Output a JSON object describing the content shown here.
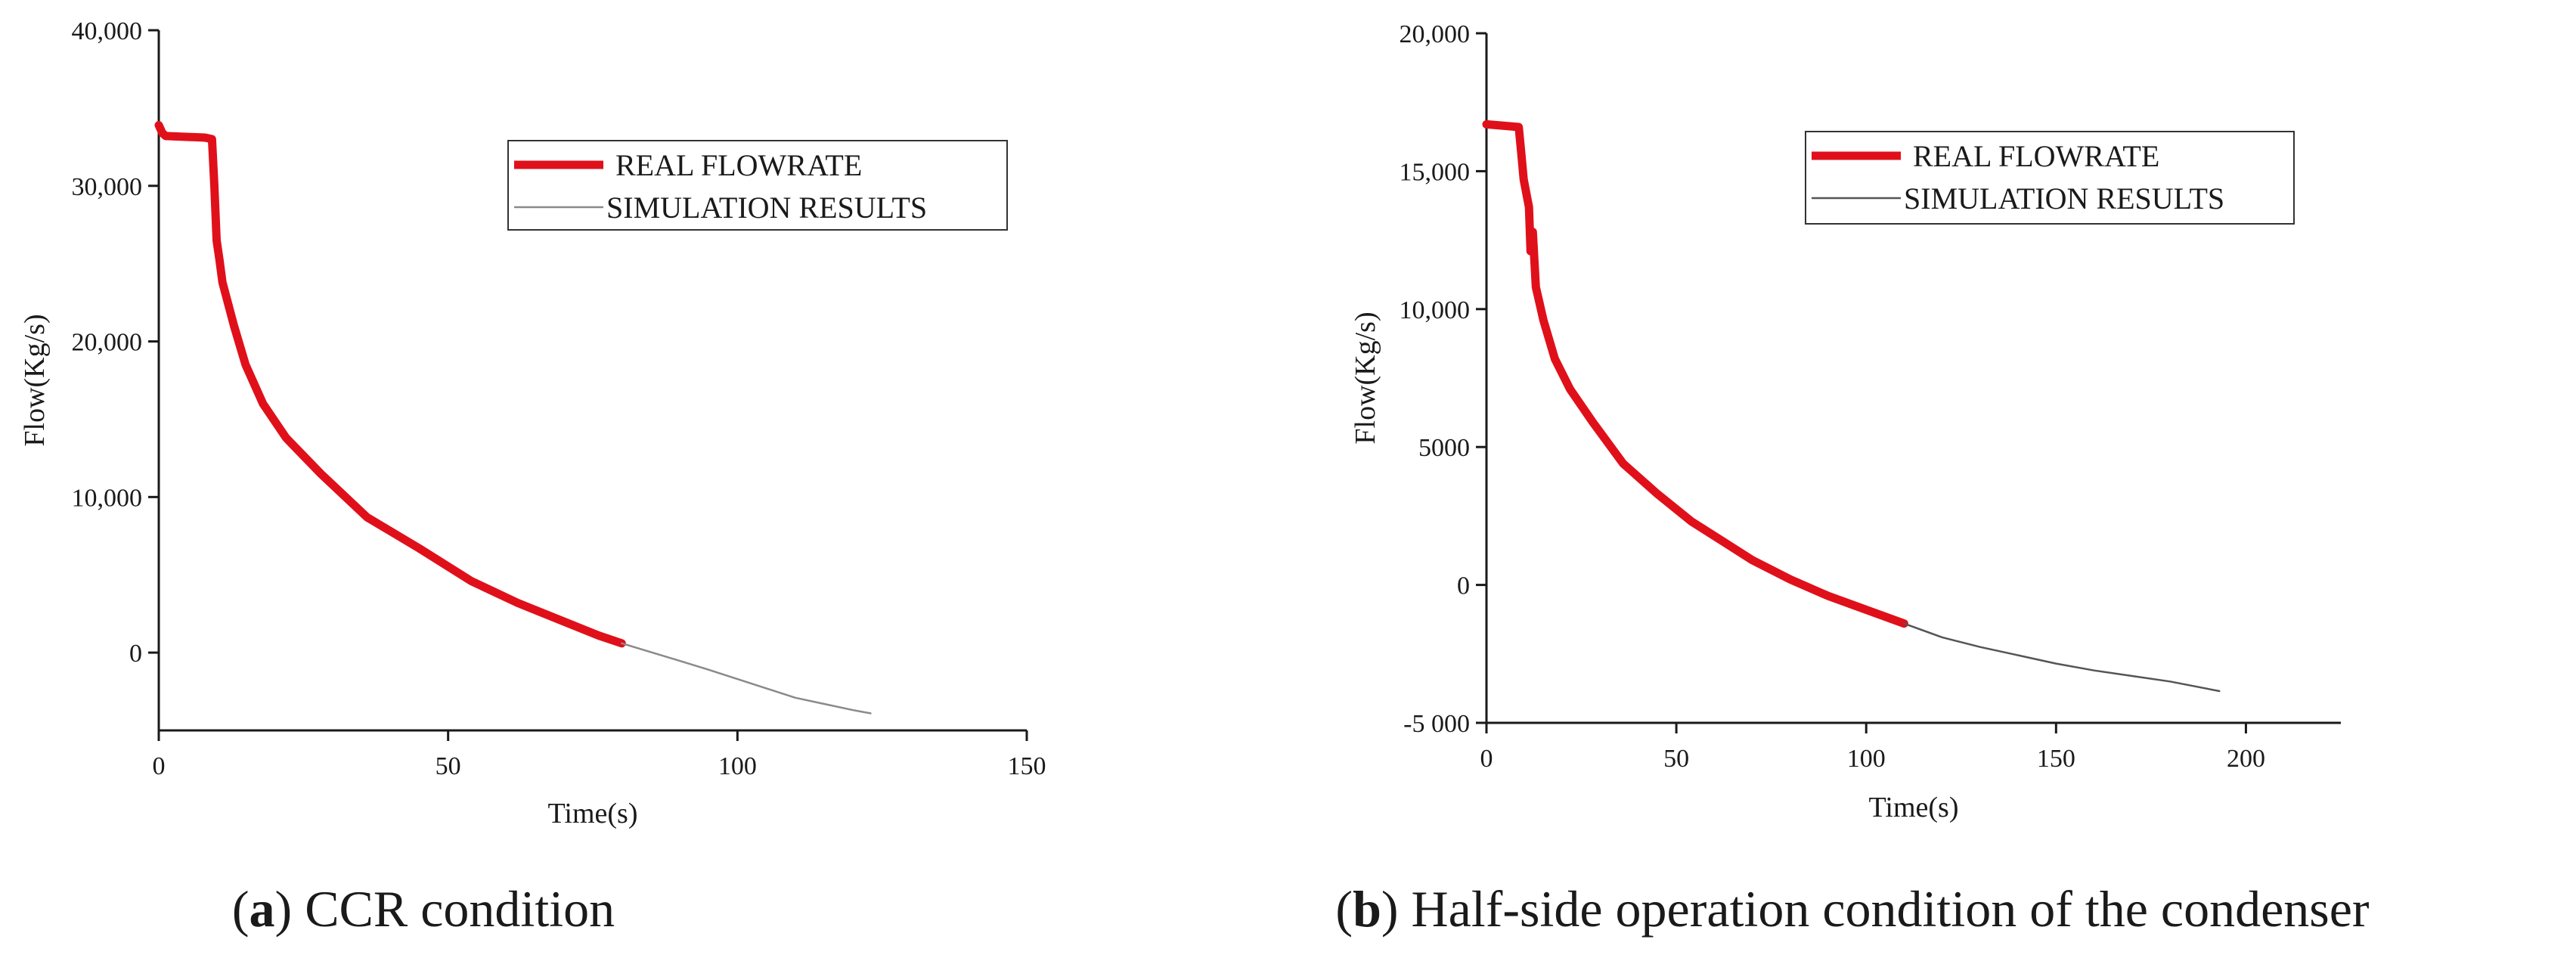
{
  "chart_data": [
    {
      "type": "line",
      "xlabel": "Time(s)",
      "ylabel": "Flow(Kg/s)",
      "xlim": [
        0,
        150
      ],
      "ylim": [
        -5000,
        40000
      ],
      "x_ticks": [
        0,
        50,
        100,
        150
      ],
      "y_ticks": [
        0,
        10000,
        20000,
        30000,
        40000
      ],
      "x_tick_labels": [
        "0",
        "50",
        "100",
        "150"
      ],
      "y_tick_labels": [
        "0",
        "10,000",
        "20,000",
        "30,000",
        "40,000"
      ],
      "grid": false,
      "legend_position": "top-right",
      "caption": {
        "letter": "a",
        "text": "CCR condition"
      },
      "series": [
        {
          "name": "REAL FLOWRATE",
          "color": "#e0101a",
          "style": "thick",
          "x": [
            0,
            0.6,
            1.2,
            8.0,
            9.2,
            9.6,
            10.0,
            10.5,
            11,
            13,
            15,
            18,
            22,
            28,
            36,
            45,
            54,
            62,
            70,
            76,
            80
          ],
          "y": [
            33900,
            33400,
            33200,
            33100,
            33000,
            30000,
            26500,
            25200,
            23800,
            21000,
            18500,
            16000,
            13800,
            11500,
            8700,
            6700,
            4600,
            3200,
            2000,
            1100,
            600
          ]
        },
        {
          "name": "SIMULATION RESULTS",
          "color": "#8a8a8a",
          "style": "thin",
          "x": [
            80,
            88,
            95,
            100,
            105,
            110,
            115,
            120,
            123
          ],
          "y": [
            600,
            -300,
            -1100,
            -1700,
            -2300,
            -2900,
            -3300,
            -3700,
            -3900
          ]
        }
      ]
    },
    {
      "type": "line",
      "xlabel": "Time(s)",
      "ylabel": "Flow(Kg/s)",
      "xlim": [
        0,
        225
      ],
      "ylim": [
        -5000,
        20000
      ],
      "x_ticks": [
        0,
        50,
        100,
        150,
        200
      ],
      "y_ticks": [
        -5000,
        0,
        5000,
        10000,
        15000,
        20000
      ],
      "x_tick_labels": [
        "0",
        "50",
        "100",
        "150",
        "200"
      ],
      "y_tick_labels": [
        "-5 000",
        "0",
        "5000",
        "10,000",
        "15,000",
        "20,000"
      ],
      "grid": false,
      "legend_position": "top-right",
      "caption": {
        "letter": "b",
        "text": "Half-side operation condition of the condenser"
      },
      "series": [
        {
          "name": "REAL FLOWRATE",
          "color": "#e0101a",
          "style": "thick",
          "x": [
            0,
            8.5,
            9.2,
            9.8,
            10.5,
            11.2,
            11.6,
            12.2,
            13,
            15,
            18,
            22,
            28,
            36,
            45,
            54,
            62,
            70,
            80,
            90,
            100,
            110
          ],
          "y": [
            16700,
            16600,
            15600,
            14700,
            14200,
            13700,
            12100,
            12800,
            10800,
            9600,
            8200,
            7100,
            5900,
            4400,
            3300,
            2300,
            1600,
            900,
            200,
            -400,
            -900,
            -1400
          ]
        },
        {
          "name": "SIMULATION RESULTS",
          "color": "#555555",
          "style": "thin",
          "x": [
            110,
            120,
            130,
            140,
            150,
            160,
            170,
            180,
            193
          ],
          "y": [
            -1400,
            -1900,
            -2250,
            -2550,
            -2850,
            -3100,
            -3300,
            -3500,
            -3850
          ]
        }
      ]
    }
  ]
}
